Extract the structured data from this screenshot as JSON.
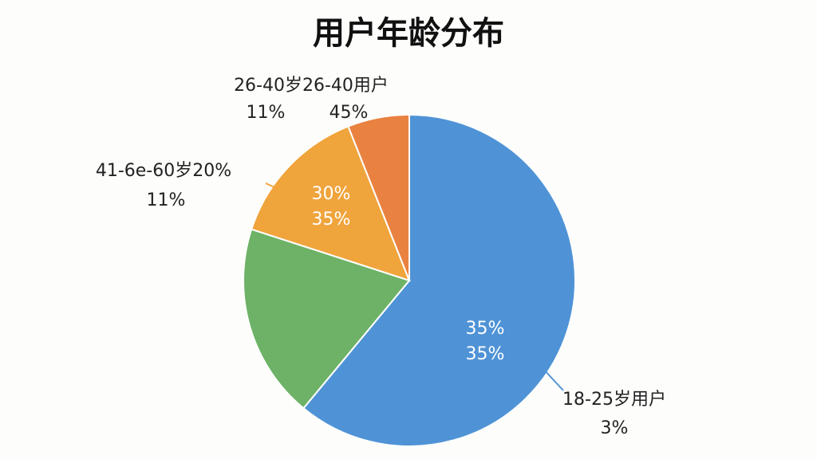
{
  "chart_data": {
    "type": "pie",
    "title": "用户年龄分布",
    "values": [
      61,
      19,
      14,
      6
    ],
    "colors": [
      "#4f93d6",
      "#6db266",
      "#f0a43c",
      "#e98240"
    ],
    "annotations": [
      "26-40岁26-40用户",
      "11%",
      "45%",
      "41-6e-60岁20%",
      "11%",
      "30%",
      "35%",
      "35%",
      "35%",
      "18-25岁用户",
      "3%"
    ]
  }
}
